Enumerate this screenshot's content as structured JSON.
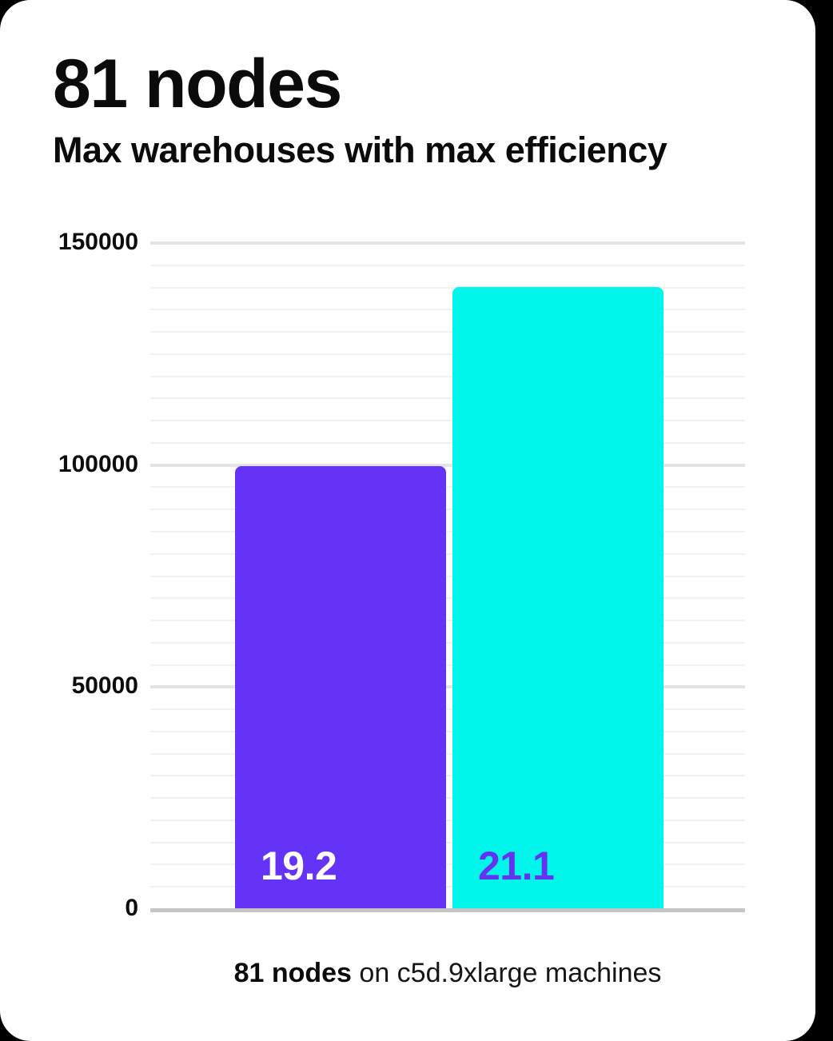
{
  "card": {
    "title": "81 nodes",
    "subtitle": "Max warehouses with max efficiency"
  },
  "chart_data": {
    "type": "bar",
    "title": "81 nodes",
    "subtitle": "Max warehouses with max efficiency",
    "categories": [
      "19.2",
      "21.1"
    ],
    "values": [
      99500,
      140000
    ],
    "bars": [
      {
        "label": "19.2",
        "value": 99500,
        "color": "#6533f8",
        "label_color": "#ffffff"
      },
      {
        "label": "21.1",
        "value": 140000,
        "color": "#00f6ea",
        "label_color": "#6533f0"
      }
    ],
    "xlabel": "",
    "ylabel": "",
    "ylim": [
      0,
      150000
    ],
    "yticks": [
      150000,
      100000,
      50000,
      0
    ],
    "minor_grid_step": 5000,
    "major_grid_step": 50000,
    "grid": "horizontal",
    "legend": "none",
    "caption": {
      "bold": "81 nodes",
      "rest": " on c5d.9xlarge machines"
    }
  },
  "colors": {
    "page_bg": "#000000",
    "card_bg": "#ffffff",
    "bar_purple": "#6533f8",
    "bar_cyan": "#00f6ea",
    "grid_major": "#e4e4e4",
    "grid_minor": "#f1f1f1",
    "axis_line": "#c6c6c6",
    "text": "#0b0b0b"
  }
}
